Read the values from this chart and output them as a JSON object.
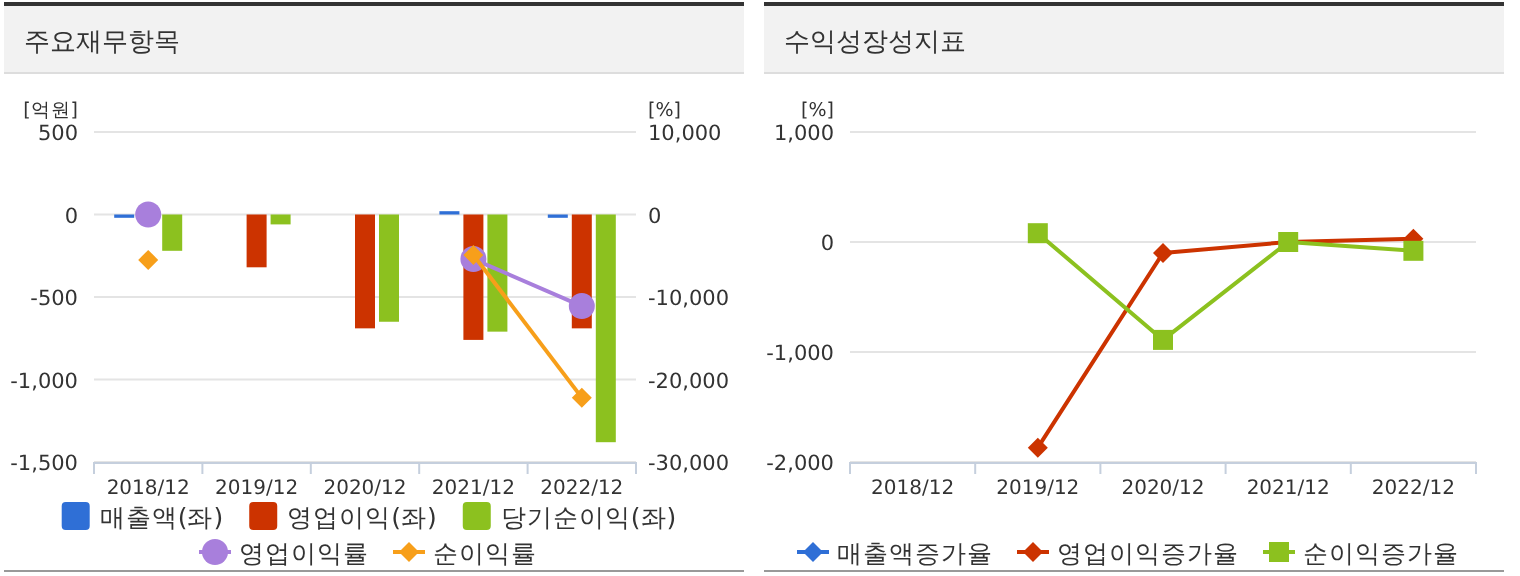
{
  "chart_data": [
    {
      "type": "bar",
      "title": "주요재무항목",
      "ylabel": "[억원]",
      "y2label": "[%]",
      "categories": [
        "2018/12",
        "2019/12",
        "2020/12",
        "2021/12",
        "2022/12"
      ],
      "ylim": [
        -1500,
        500
      ],
      "yticks": [
        {
          "value": -1500,
          "label": "-1,500"
        },
        {
          "value": -1000,
          "label": "-1,000"
        },
        -500,
        0,
        500
      ],
      "y2lim": [
        -30000,
        10000
      ],
      "y2ticks": [
        {
          "value": -30000,
          "label": "-30,000"
        },
        {
          "value": -20000,
          "label": "-20,000"
        },
        {
          "value": -10000,
          "label": "-10,000"
        },
        0,
        {
          "value": 10000,
          "label": "10,000"
        }
      ],
      "grid": "y",
      "legend": "bottom",
      "series": [
        {
          "name": "매출액(좌)",
          "color": "#2f6fd6",
          "values": [
            -20,
            null,
            null,
            20,
            -20
          ]
        },
        {
          "name": "영업이익(좌)",
          "color": "#cc3300",
          "values": [
            null,
            -320,
            -690,
            -760,
            -690
          ]
        },
        {
          "name": "당기순이익(좌)",
          "color": "#8cc11f",
          "values": [
            -220,
            -60,
            -650,
            -710,
            -1380
          ]
        },
        {
          "name": "영업이익률",
          "type": "line",
          "axis": "y2",
          "marker": "circle",
          "color": "#a87fdc",
          "values": [
            0,
            null,
            null,
            -5400,
            -11100
          ]
        },
        {
          "name": "순이익률",
          "type": "line",
          "axis": "y2",
          "marker": "diamond",
          "color": "#f79f1a",
          "values": [
            -5500,
            null,
            null,
            -4900,
            -22200
          ]
        }
      ]
    },
    {
      "type": "line",
      "title": "수익성장성지표",
      "ylabel": "[%]",
      "categories": [
        "2018/12",
        "2019/12",
        "2020/12",
        "2021/12",
        "2022/12"
      ],
      "ylim": [
        -2000,
        1000
      ],
      "yticks": [
        {
          "value": -2000,
          "label": "-2,000"
        },
        {
          "value": -1000,
          "label": "-1,000"
        },
        0,
        {
          "value": 1000,
          "label": "1,000"
        }
      ],
      "grid": "y",
      "legend": "bottom",
      "series": [
        {
          "name": "매출액증가율",
          "marker": "diamond",
          "color": "#2f6fd6",
          "values": [
            null,
            null,
            null,
            null,
            null
          ]
        },
        {
          "name": "영업이익증가율",
          "marker": "diamond",
          "color": "#cc3300",
          "values": [
            null,
            -1870,
            -100,
            0,
            30
          ]
        },
        {
          "name": "순이익증가율",
          "marker": "square",
          "color": "#8cc11f",
          "values": [
            null,
            80,
            -890,
            0,
            -80
          ]
        }
      ]
    }
  ]
}
